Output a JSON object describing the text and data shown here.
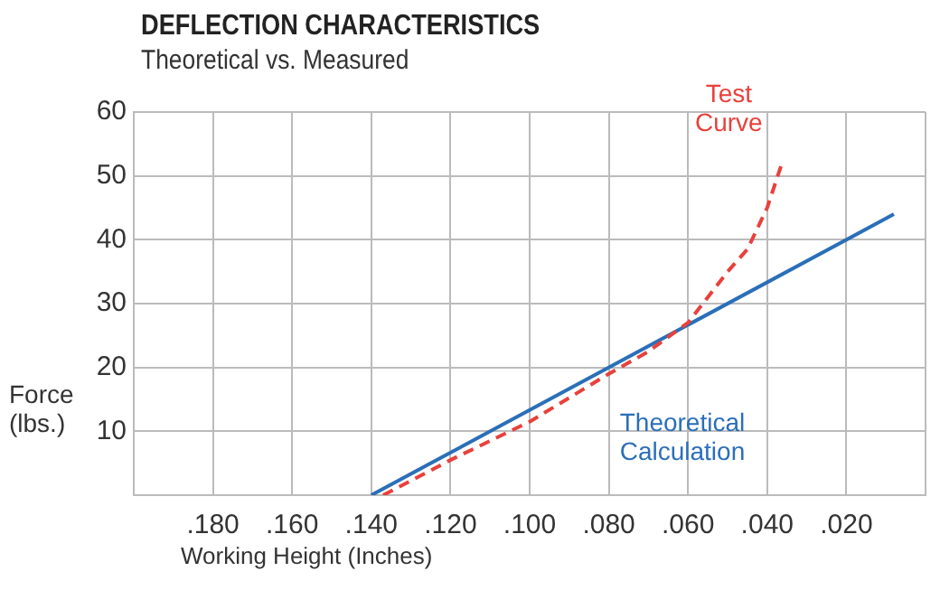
{
  "chart_data": {
    "type": "line",
    "title": "DEFLECTION CHARACTERISTICS",
    "subtitle": "Theoretical vs. Measured",
    "xlabel": "Working Height (Inches)",
    "ylabel": "Force (lbs.)",
    "xlim": [
      0.2,
      0
    ],
    "xticks": [
      {
        "value": 0.2,
        "label": null
      },
      {
        "value": 0.18,
        "label": ".180"
      },
      {
        "value": 0.16,
        "label": ".160"
      },
      {
        "value": 0.14,
        "label": ".140"
      },
      {
        "value": 0.12,
        "label": ".120"
      },
      {
        "value": 0.1,
        "label": ".100"
      },
      {
        "value": 0.08,
        "label": ".080"
      },
      {
        "value": 0.06,
        "label": ".060"
      },
      {
        "value": 0.04,
        "label": ".040"
      },
      {
        "value": 0.02,
        "label": ".020"
      },
      {
        "value": 0,
        "label": null
      }
    ],
    "ylim": [
      0,
      60
    ],
    "yticks": [
      {
        "value": 0,
        "label": null
      },
      10,
      20,
      30,
      40,
      50,
      60
    ],
    "grid": true,
    "legend": false,
    "marker": "none",
    "series": [
      {
        "name": "Test Curve",
        "color": "#e8413c",
        "line_style": "dashed",
        "x": [
          0.137,
          0.12,
          0.1,
          0.08,
          0.07,
          0.06,
          0.055,
          0.05,
          0.045,
          0.04,
          0.036
        ],
        "values": [
          0,
          5.5,
          11.5,
          19,
          22.5,
          27,
          31,
          35,
          38.5,
          45,
          52.5
        ]
      },
      {
        "name": "Theoretical Calculation",
        "color": "#2a6fb8",
        "line_style": "solid",
        "x": [
          0.14,
          0.008
        ],
        "values": [
          0,
          44
        ]
      }
    ]
  }
}
